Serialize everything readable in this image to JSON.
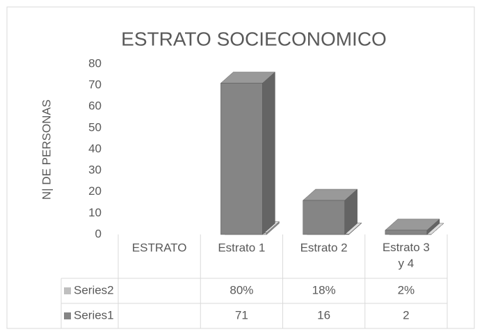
{
  "chart_data": {
    "type": "bar3d",
    "title": "ESTRATO SOCIECONOMICO",
    "y_label": "N| DE PERSONAS",
    "categories": [
      "ESTRATO",
      "Estrato 1",
      "Estrato 2",
      "Estrato 3 y 4"
    ],
    "series": [
      {
        "name": "Series2",
        "color": "#bfbfbf",
        "values": [
          null,
          0.8,
          0.18,
          0.02
        ],
        "value_labels": [
          null,
          "80%",
          "18%",
          "2%"
        ]
      },
      {
        "name": "Series1",
        "color": "#858585",
        "values": [
          null,
          71,
          16,
          2
        ]
      }
    ],
    "ylim": [
      0,
      80
    ],
    "yticks": [
      0,
      10,
      20,
      30,
      40,
      50,
      60,
      70,
      80
    ],
    "data_table": true
  }
}
